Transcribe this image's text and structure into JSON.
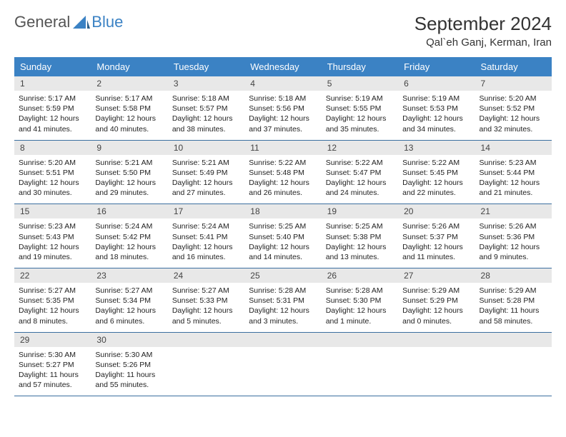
{
  "logo": {
    "text1": "General",
    "text2": "Blue"
  },
  "header": {
    "month_title": "September 2024",
    "location": "Qal`eh Ganj, Kerman, Iran"
  },
  "colors": {
    "header_bg": "#3b82c4",
    "header_fg": "#ffffff",
    "daynum_bg": "#e8e8e8",
    "row_border": "#3b6fa0",
    "logo_gray": "#555555",
    "logo_blue": "#3b82c4"
  },
  "day_headers": [
    "Sunday",
    "Monday",
    "Tuesday",
    "Wednesday",
    "Thursday",
    "Friday",
    "Saturday"
  ],
  "weeks": [
    [
      {
        "n": "1",
        "sr": "5:17 AM",
        "ss": "5:59 PM",
        "dl": "12 hours and 41 minutes."
      },
      {
        "n": "2",
        "sr": "5:17 AM",
        "ss": "5:58 PM",
        "dl": "12 hours and 40 minutes."
      },
      {
        "n": "3",
        "sr": "5:18 AM",
        "ss": "5:57 PM",
        "dl": "12 hours and 38 minutes."
      },
      {
        "n": "4",
        "sr": "5:18 AM",
        "ss": "5:56 PM",
        "dl": "12 hours and 37 minutes."
      },
      {
        "n": "5",
        "sr": "5:19 AM",
        "ss": "5:55 PM",
        "dl": "12 hours and 35 minutes."
      },
      {
        "n": "6",
        "sr": "5:19 AM",
        "ss": "5:53 PM",
        "dl": "12 hours and 34 minutes."
      },
      {
        "n": "7",
        "sr": "5:20 AM",
        "ss": "5:52 PM",
        "dl": "12 hours and 32 minutes."
      }
    ],
    [
      {
        "n": "8",
        "sr": "5:20 AM",
        "ss": "5:51 PM",
        "dl": "12 hours and 30 minutes."
      },
      {
        "n": "9",
        "sr": "5:21 AM",
        "ss": "5:50 PM",
        "dl": "12 hours and 29 minutes."
      },
      {
        "n": "10",
        "sr": "5:21 AM",
        "ss": "5:49 PM",
        "dl": "12 hours and 27 minutes."
      },
      {
        "n": "11",
        "sr": "5:22 AM",
        "ss": "5:48 PM",
        "dl": "12 hours and 26 minutes."
      },
      {
        "n": "12",
        "sr": "5:22 AM",
        "ss": "5:47 PM",
        "dl": "12 hours and 24 minutes."
      },
      {
        "n": "13",
        "sr": "5:22 AM",
        "ss": "5:45 PM",
        "dl": "12 hours and 22 minutes."
      },
      {
        "n": "14",
        "sr": "5:23 AM",
        "ss": "5:44 PM",
        "dl": "12 hours and 21 minutes."
      }
    ],
    [
      {
        "n": "15",
        "sr": "5:23 AM",
        "ss": "5:43 PM",
        "dl": "12 hours and 19 minutes."
      },
      {
        "n": "16",
        "sr": "5:24 AM",
        "ss": "5:42 PM",
        "dl": "12 hours and 18 minutes."
      },
      {
        "n": "17",
        "sr": "5:24 AM",
        "ss": "5:41 PM",
        "dl": "12 hours and 16 minutes."
      },
      {
        "n": "18",
        "sr": "5:25 AM",
        "ss": "5:40 PM",
        "dl": "12 hours and 14 minutes."
      },
      {
        "n": "19",
        "sr": "5:25 AM",
        "ss": "5:38 PM",
        "dl": "12 hours and 13 minutes."
      },
      {
        "n": "20",
        "sr": "5:26 AM",
        "ss": "5:37 PM",
        "dl": "12 hours and 11 minutes."
      },
      {
        "n": "21",
        "sr": "5:26 AM",
        "ss": "5:36 PM",
        "dl": "12 hours and 9 minutes."
      }
    ],
    [
      {
        "n": "22",
        "sr": "5:27 AM",
        "ss": "5:35 PM",
        "dl": "12 hours and 8 minutes."
      },
      {
        "n": "23",
        "sr": "5:27 AM",
        "ss": "5:34 PM",
        "dl": "12 hours and 6 minutes."
      },
      {
        "n": "24",
        "sr": "5:27 AM",
        "ss": "5:33 PM",
        "dl": "12 hours and 5 minutes."
      },
      {
        "n": "25",
        "sr": "5:28 AM",
        "ss": "5:31 PM",
        "dl": "12 hours and 3 minutes."
      },
      {
        "n": "26",
        "sr": "5:28 AM",
        "ss": "5:30 PM",
        "dl": "12 hours and 1 minute."
      },
      {
        "n": "27",
        "sr": "5:29 AM",
        "ss": "5:29 PM",
        "dl": "12 hours and 0 minutes."
      },
      {
        "n": "28",
        "sr": "5:29 AM",
        "ss": "5:28 PM",
        "dl": "11 hours and 58 minutes."
      }
    ],
    [
      {
        "n": "29",
        "sr": "5:30 AM",
        "ss": "5:27 PM",
        "dl": "11 hours and 57 minutes."
      },
      {
        "n": "30",
        "sr": "5:30 AM",
        "ss": "5:26 PM",
        "dl": "11 hours and 55 minutes."
      },
      null,
      null,
      null,
      null,
      null
    ]
  ],
  "labels": {
    "sunrise": "Sunrise:",
    "sunset": "Sunset:",
    "daylight": "Daylight:"
  }
}
